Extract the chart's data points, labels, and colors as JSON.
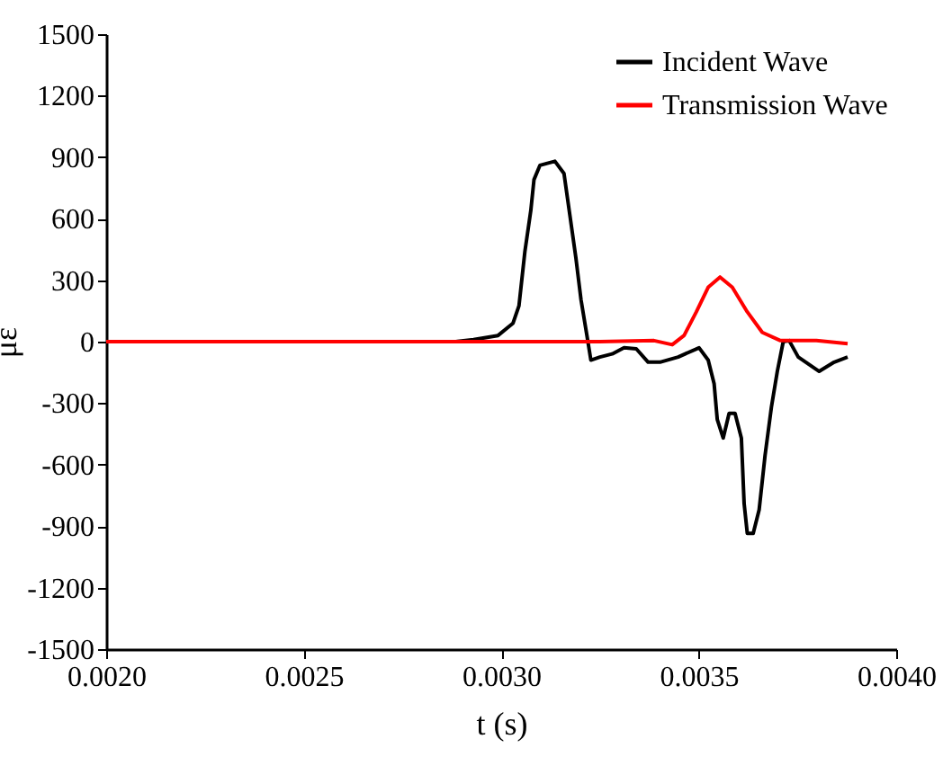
{
  "chart_data": {
    "type": "line",
    "xlabel": "t (s)",
    "ylabel": "με",
    "xlim": [
      0.002,
      0.004
    ],
    "xticks": [
      {
        "value": 0.002,
        "label": "0.0020"
      },
      {
        "value": 0.0025,
        "label": "0.0025"
      },
      {
        "value": 0.003,
        "label": "0.0030"
      },
      {
        "value": 0.0035,
        "label": "0.0035"
      },
      {
        "value": 0.004,
        "label": "0.0040"
      }
    ],
    "ylim": [
      -1500,
      1500
    ],
    "yticks": [
      -1500,
      -1200,
      -900,
      -600,
      -300,
      0,
      300,
      600,
      900,
      1200,
      1500
    ],
    "grid": false,
    "legend": "top right",
    "line_style": "solid",
    "marker": "none",
    "series": [
      {
        "name": "Incident Wave",
        "color": "#000000",
        "x": [
          0.002,
          0.002885,
          0.00293,
          0.002992,
          0.00303,
          0.003045,
          0.00306,
          0.003075,
          0.003083,
          0.003098,
          0.003136,
          0.003159,
          0.003174,
          0.003189,
          0.003202,
          0.003217,
          0.003227,
          0.00325,
          0.003281,
          0.003311,
          0.003342,
          0.003372,
          0.003402,
          0.003448,
          0.003501,
          0.003524,
          0.003539,
          0.003547,
          0.003562,
          0.003577,
          0.003592,
          0.003608,
          0.003615,
          0.003623,
          0.003638,
          0.003653,
          0.003668,
          0.003684,
          0.003699,
          0.003714,
          0.003729,
          0.003752,
          0.003805,
          0.003843,
          0.003877
        ],
        "values": [
          0,
          0,
          10,
          30,
          90,
          175,
          440,
          640,
          790,
          860,
          880,
          820,
          615,
          410,
          205,
          30,
          -90,
          -75,
          -60,
          -30,
          -35,
          -100,
          -100,
          -75,
          -30,
          -90,
          -205,
          -380,
          -470,
          -350,
          -350,
          -470,
          -790,
          -935,
          -935,
          -820,
          -555,
          -320,
          -145,
          0,
          5,
          -75,
          -145,
          -100,
          -75
        ]
      },
      {
        "name": "Transmission Wave",
        "color": "#ff0000",
        "x": [
          0.002,
          0.00325,
          0.003387,
          0.003433,
          0.003463,
          0.003494,
          0.003524,
          0.003554,
          0.003585,
          0.003623,
          0.003661,
          0.003707,
          0.003798,
          0.003877
        ],
        "values": [
          0,
          0,
          5,
          -15,
          30,
          145,
          265,
          315,
          265,
          145,
          45,
          5,
          5,
          -10
        ]
      }
    ]
  }
}
